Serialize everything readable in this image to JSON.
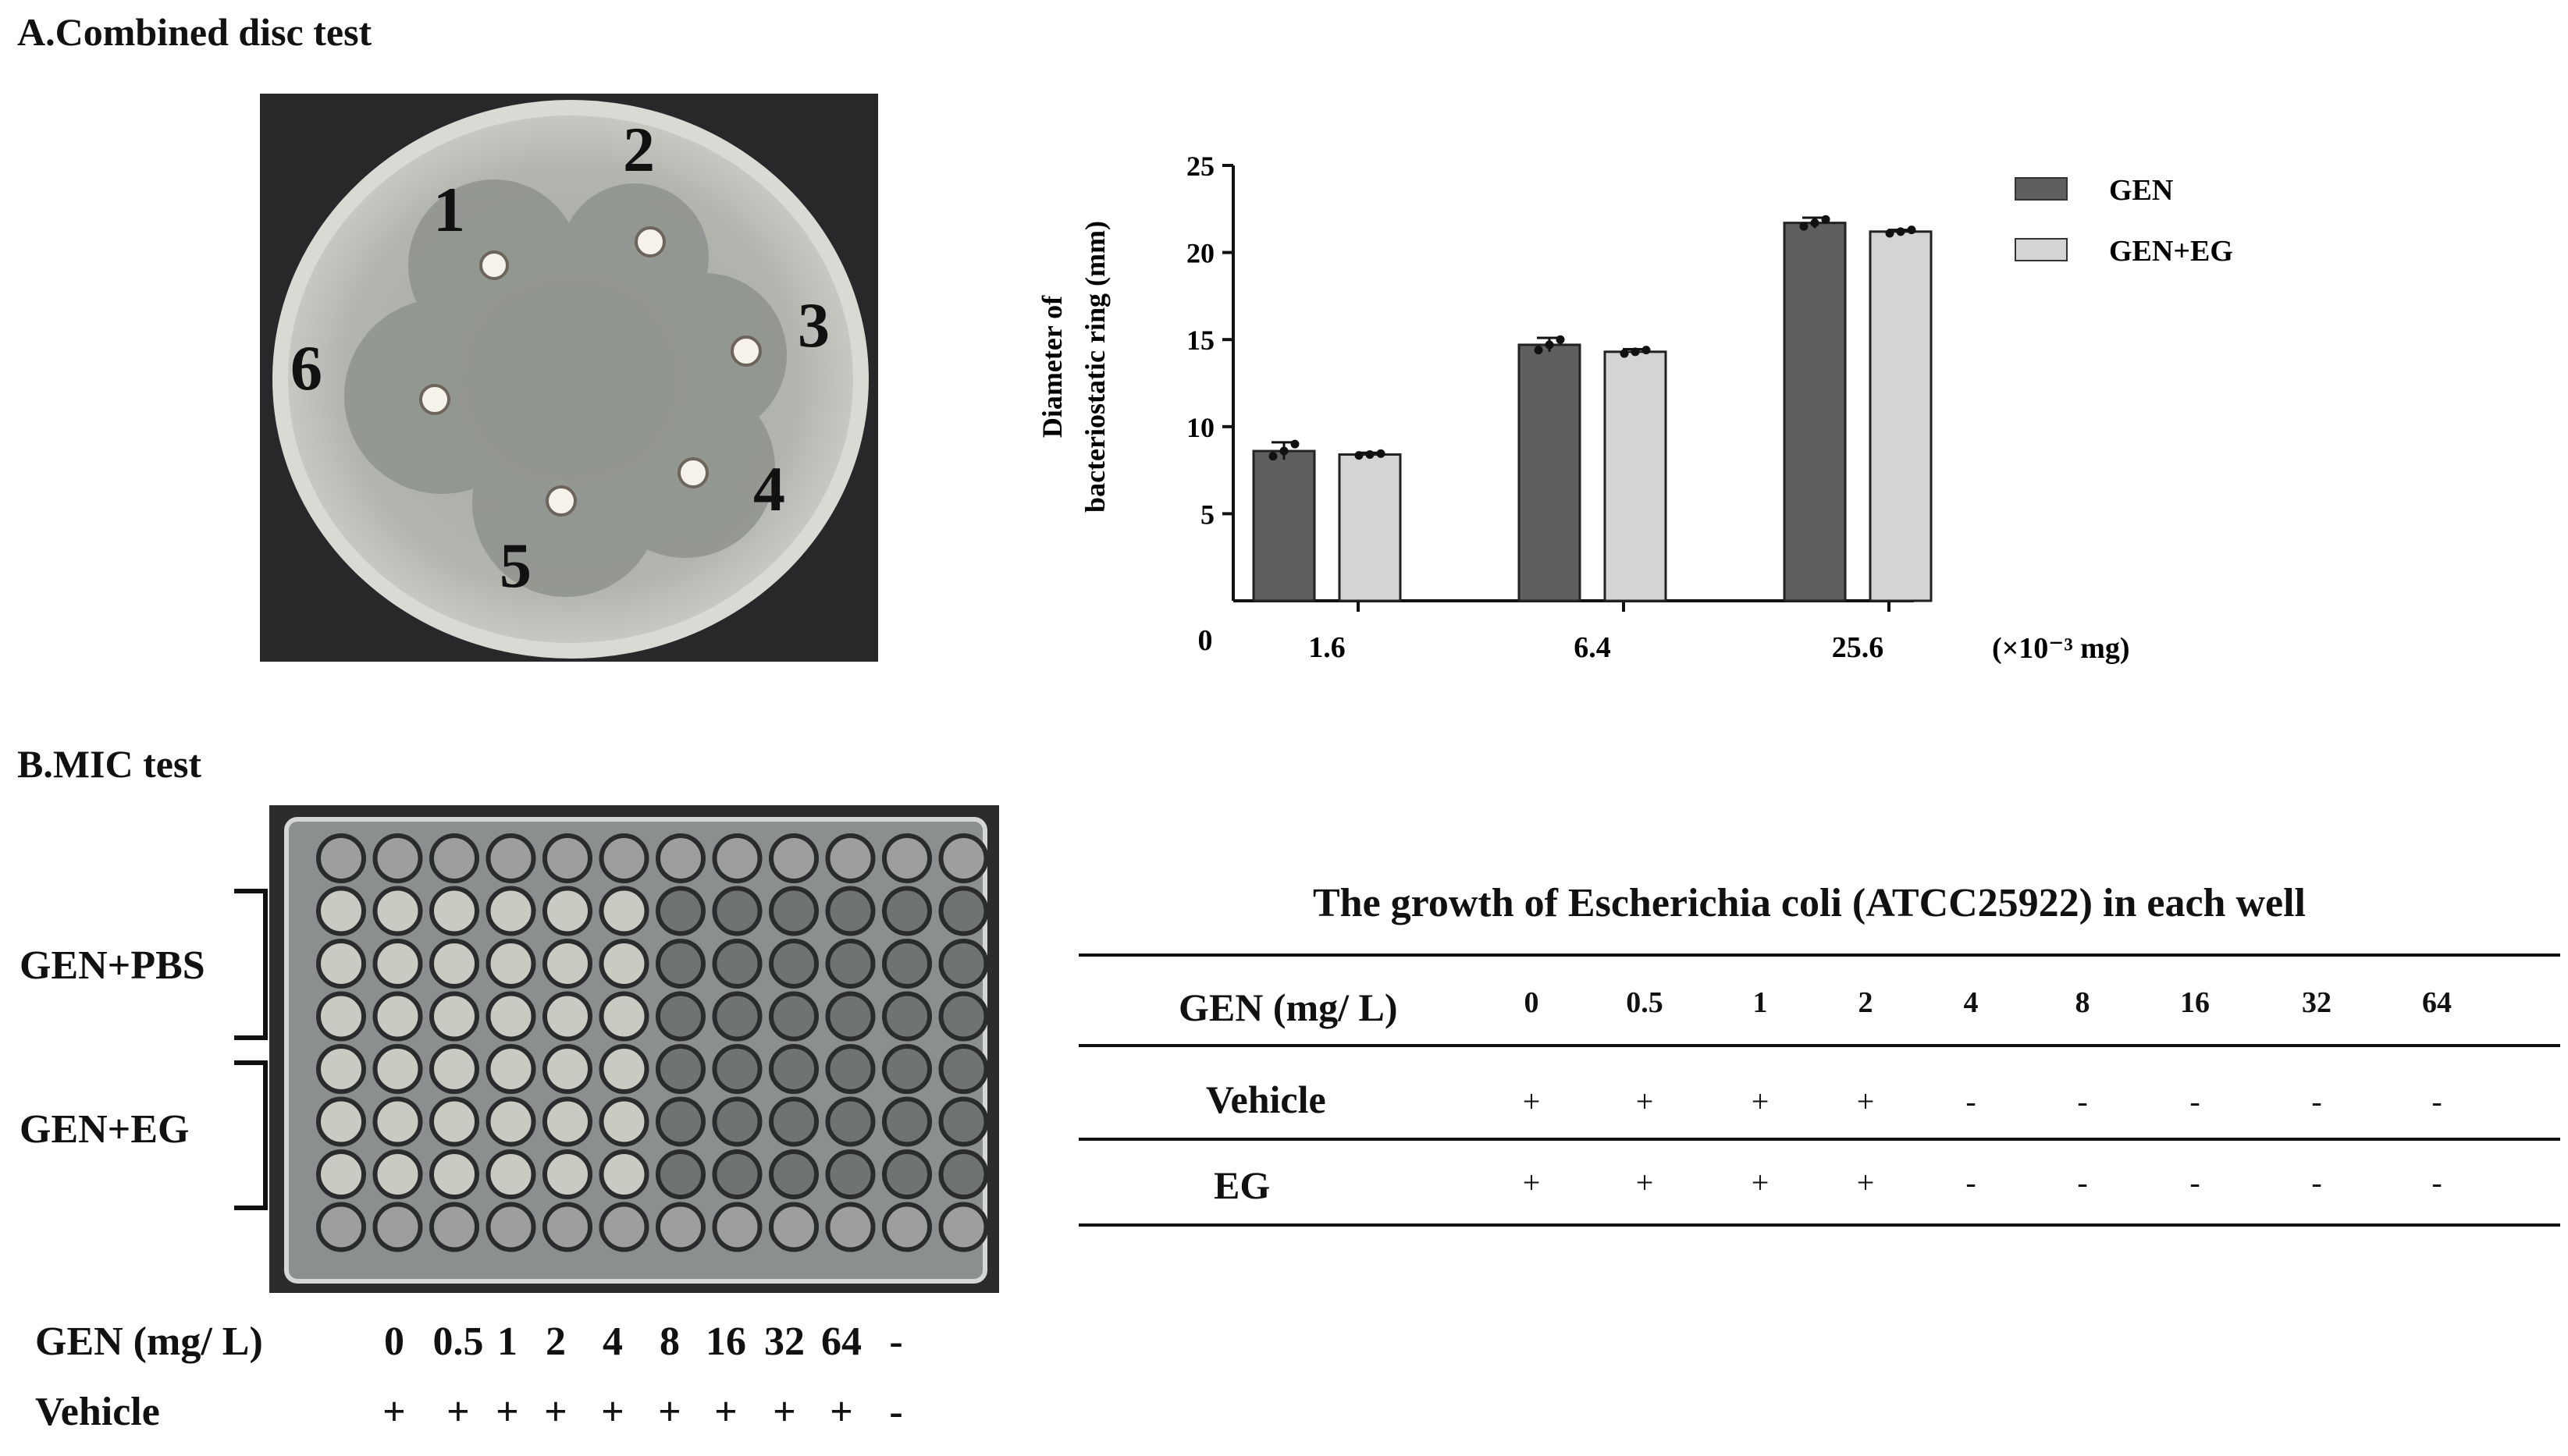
{
  "panel_a": {
    "title": "A.Combined disc test",
    "plate_numbers": [
      "1",
      "2",
      "3",
      "4",
      "5",
      "6"
    ]
  },
  "panel_b": {
    "title": "B.MIC test",
    "bracket_labels": [
      "GEN+PBS",
      "GEN+EG"
    ],
    "sequence": {
      "gen_label": "GEN (mg/ L)",
      "gen_values": [
        "0",
        "0.5",
        "1",
        "2",
        "4",
        "8",
        "16",
        "32",
        "64",
        "-"
      ],
      "vehicle_label": "Vehicle",
      "vehicle_values": [
        "+",
        "+",
        "+",
        "+",
        "+",
        "+",
        "+",
        "+",
        "+",
        "-"
      ]
    }
  },
  "table": {
    "title": "The growth of Escherichia coli (ATCC25922) in each well",
    "header_label": "GEN (mg/ L)",
    "columns": [
      "0",
      "0.5",
      "1",
      "2",
      "4",
      "8",
      "16",
      "32",
      "64"
    ],
    "rows": [
      {
        "label": "Vehicle",
        "values": [
          "+",
          "+",
          "+",
          "+",
          "-",
          "-",
          "-",
          "-",
          "-"
        ]
      },
      {
        "label": "EG",
        "values": [
          "+",
          "+",
          "+",
          "+",
          "-",
          "-",
          "-",
          "-",
          "-"
        ]
      }
    ]
  },
  "chart_data": {
    "type": "bar",
    "ylabel_lines": [
      "Diameter of",
      "bacteriostatic ring (mm)"
    ],
    "xunit": "(×10⁻³ mg)",
    "origin_label": "0",
    "categories": [
      "1.6",
      "6.4",
      "25.6"
    ],
    "ylim": [
      0,
      25
    ],
    "yticks": [
      5,
      10,
      15,
      20,
      25
    ],
    "legend_position": "top-right",
    "series": [
      {
        "name": "GEN",
        "color": "#5f5f5f",
        "values": [
          8.6,
          14.7,
          21.7
        ],
        "errors": [
          0.5,
          0.4,
          0.3
        ],
        "points": [
          [
            8.3,
            8.6,
            9.0
          ],
          [
            14.4,
            14.7,
            15.0
          ],
          [
            21.5,
            21.7,
            21.9
          ]
        ]
      },
      {
        "name": "GEN+EG",
        "color": "#d4d4d4",
        "values": [
          8.4,
          14.3,
          21.2
        ],
        "errors": [
          0.1,
          0.15,
          0.1
        ],
        "points": [
          [
            8.35,
            8.4,
            8.45
          ],
          [
            14.2,
            14.3,
            14.4
          ],
          [
            21.1,
            21.2,
            21.3
          ]
        ]
      }
    ]
  }
}
